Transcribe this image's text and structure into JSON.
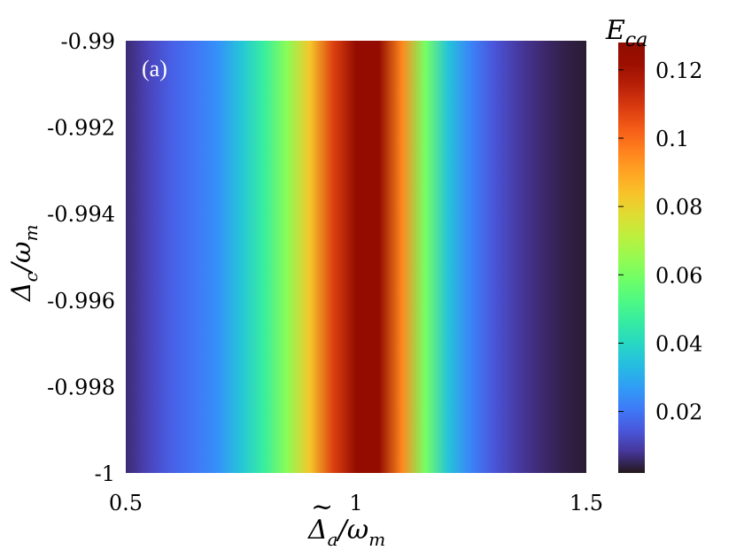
{
  "chart_data": {
    "type": "heatmap",
    "panel_label": "(a)",
    "xlabel": "Δ̃a/ωm",
    "ylabel": "Δc/ωm",
    "colorbar_label": "Eca",
    "xlim": [
      0.5,
      1.5
    ],
    "ylim": [
      -1,
      -0.99
    ],
    "clim": [
      0.002,
      0.128
    ],
    "x_ticks": [
      "0.5",
      "1",
      "1.5"
    ],
    "y_ticks": [
      "-0.99",
      "-0.992",
      "-0.994",
      "-0.996",
      "-0.998",
      "-1"
    ],
    "colorbar_ticks": [
      "0.02",
      "0.04",
      "0.06",
      "0.08",
      "0.1",
      "0.12"
    ],
    "colormap": "turbo",
    "note_values": "E_ca depends only on x in this range; profile along x (constant in y)",
    "x": [
      0.5,
      0.55,
      0.6,
      0.65,
      0.7,
      0.75,
      0.8,
      0.85,
      0.9,
      0.95,
      1.0,
      1.05,
      1.1,
      1.15,
      1.2,
      1.25,
      1.3,
      1.35,
      1.4,
      1.45,
      1.5
    ],
    "values": [
      0.006,
      0.011,
      0.016,
      0.02,
      0.025,
      0.035,
      0.047,
      0.063,
      0.083,
      0.108,
      0.124,
      0.124,
      0.095,
      0.06,
      0.035,
      0.022,
      0.014,
      0.009,
      0.006,
      0.004,
      0.003
    ],
    "grid": false
  }
}
